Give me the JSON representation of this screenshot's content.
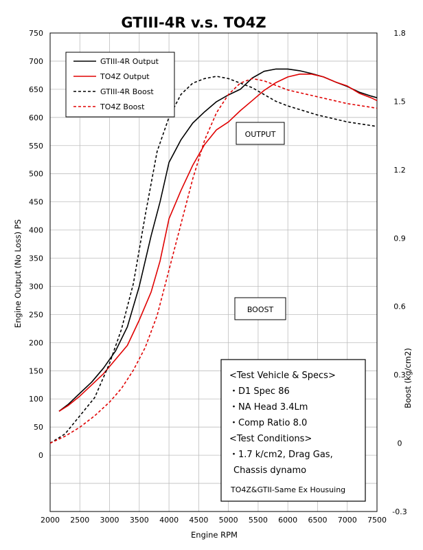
{
  "chart_data": {
    "type": "line",
    "title": "GTIII-4R v.s. TO4Z",
    "xlabel": "Engine RPM",
    "ylabel": "Engine Output (No Loss) PS",
    "y2label": "Boost (kg/cm2)",
    "xlim": [
      2000,
      7500
    ],
    "ylim": [
      -100,
      750
    ],
    "y2lim": [
      -0.3,
      1.8
    ],
    "xticks": [
      "2000",
      "2500",
      "3000",
      "3500",
      "4000",
      "4500",
      "5000",
      "5500",
      "6000",
      "6500",
      "7000",
      "7500"
    ],
    "yticks": [
      "750",
      "700",
      "650",
      "600",
      "550",
      "500",
      "450",
      "400",
      "350",
      "300",
      "250",
      "200",
      "150",
      "100",
      "50",
      "0"
    ],
    "y2ticks": [
      "1.8",
      "1.5",
      "1.2",
      "0.9",
      "0.6",
      "0.3",
      "0",
      "-0.3"
    ],
    "grid": true,
    "legend_position": "top-left",
    "series": [
      {
        "name": "GTIII-4R Output",
        "color": "#000000",
        "dash": "solid",
        "axis": "left",
        "x": [
          2150,
          2300,
          2500,
          2700,
          2900,
          3100,
          3300,
          3500,
          3700,
          3850,
          4000,
          4200,
          4400,
          4600,
          4800,
          5000,
          5200,
          5400,
          5600,
          5800,
          6000,
          6200,
          6400,
          6600,
          6800,
          7000,
          7200,
          7400,
          7500
        ],
        "y": [
          78,
          90,
          110,
          130,
          155,
          185,
          228,
          300,
          390,
          450,
          520,
          560,
          590,
          610,
          628,
          640,
          650,
          670,
          682,
          686,
          686,
          683,
          678,
          672,
          663,
          655,
          645,
          638,
          635
        ]
      },
      {
        "name": "TO4Z Output",
        "color": "#e00000",
        "dash": "solid",
        "axis": "left",
        "x": [
          2150,
          2300,
          2500,
          2700,
          2900,
          3100,
          3300,
          3500,
          3700,
          3850,
          4000,
          4200,
          4400,
          4600,
          4800,
          5000,
          5200,
          5400,
          5600,
          5800,
          6000,
          6200,
          6400,
          6600,
          6800,
          7000,
          7200,
          7400,
          7500
        ],
        "y": [
          78,
          88,
          105,
          125,
          145,
          170,
          195,
          240,
          290,
          345,
          420,
          470,
          515,
          552,
          578,
          592,
          612,
          630,
          648,
          662,
          672,
          677,
          677,
          672,
          663,
          656,
          643,
          635,
          630
        ]
      },
      {
        "name": "GTIII-4R Boost",
        "color": "#000000",
        "dash": "dashed",
        "axis": "right",
        "x": [
          2000,
          2250,
          2500,
          2750,
          3000,
          3200,
          3400,
          3600,
          3800,
          4000,
          4200,
          4400,
          4600,
          4800,
          5000,
          5200,
          5400,
          5600,
          5800,
          6000,
          6500,
          7000,
          7500
        ],
        "y": [
          0,
          0.04,
          0.12,
          0.2,
          0.35,
          0.5,
          0.7,
          1.0,
          1.28,
          1.43,
          1.53,
          1.58,
          1.6,
          1.61,
          1.6,
          1.58,
          1.56,
          1.53,
          1.5,
          1.48,
          1.44,
          1.41,
          1.39
        ]
      },
      {
        "name": "TO4Z Boost",
        "color": "#e00000",
        "dash": "dashed",
        "axis": "right",
        "x": [
          2000,
          2250,
          2500,
          2750,
          3000,
          3200,
          3400,
          3600,
          3800,
          4000,
          4200,
          4400,
          4600,
          4800,
          5000,
          5200,
          5400,
          5600,
          5800,
          6000,
          6500,
          7000,
          7500
        ],
        "y": [
          0,
          0.03,
          0.07,
          0.12,
          0.18,
          0.24,
          0.32,
          0.42,
          0.56,
          0.76,
          0.96,
          1.16,
          1.33,
          1.45,
          1.53,
          1.58,
          1.6,
          1.59,
          1.57,
          1.55,
          1.52,
          1.49,
          1.47
        ]
      }
    ],
    "annotations": {
      "output_label": "OUTPUT",
      "boost_label": "BOOST"
    },
    "specs_box": {
      "lines": [
        "<Test Vehicle & Specs>",
        "・D1 Spec 86",
        "・NA Head 3.4Lm",
        "・Comp Ratio 8.0",
        "<Test Conditions>",
        "・1.7 k/cm2, Drag Gas,",
        "Chassis dynamo"
      ],
      "footer": "TO4Z&GTII-Same Ex Housuing"
    }
  }
}
